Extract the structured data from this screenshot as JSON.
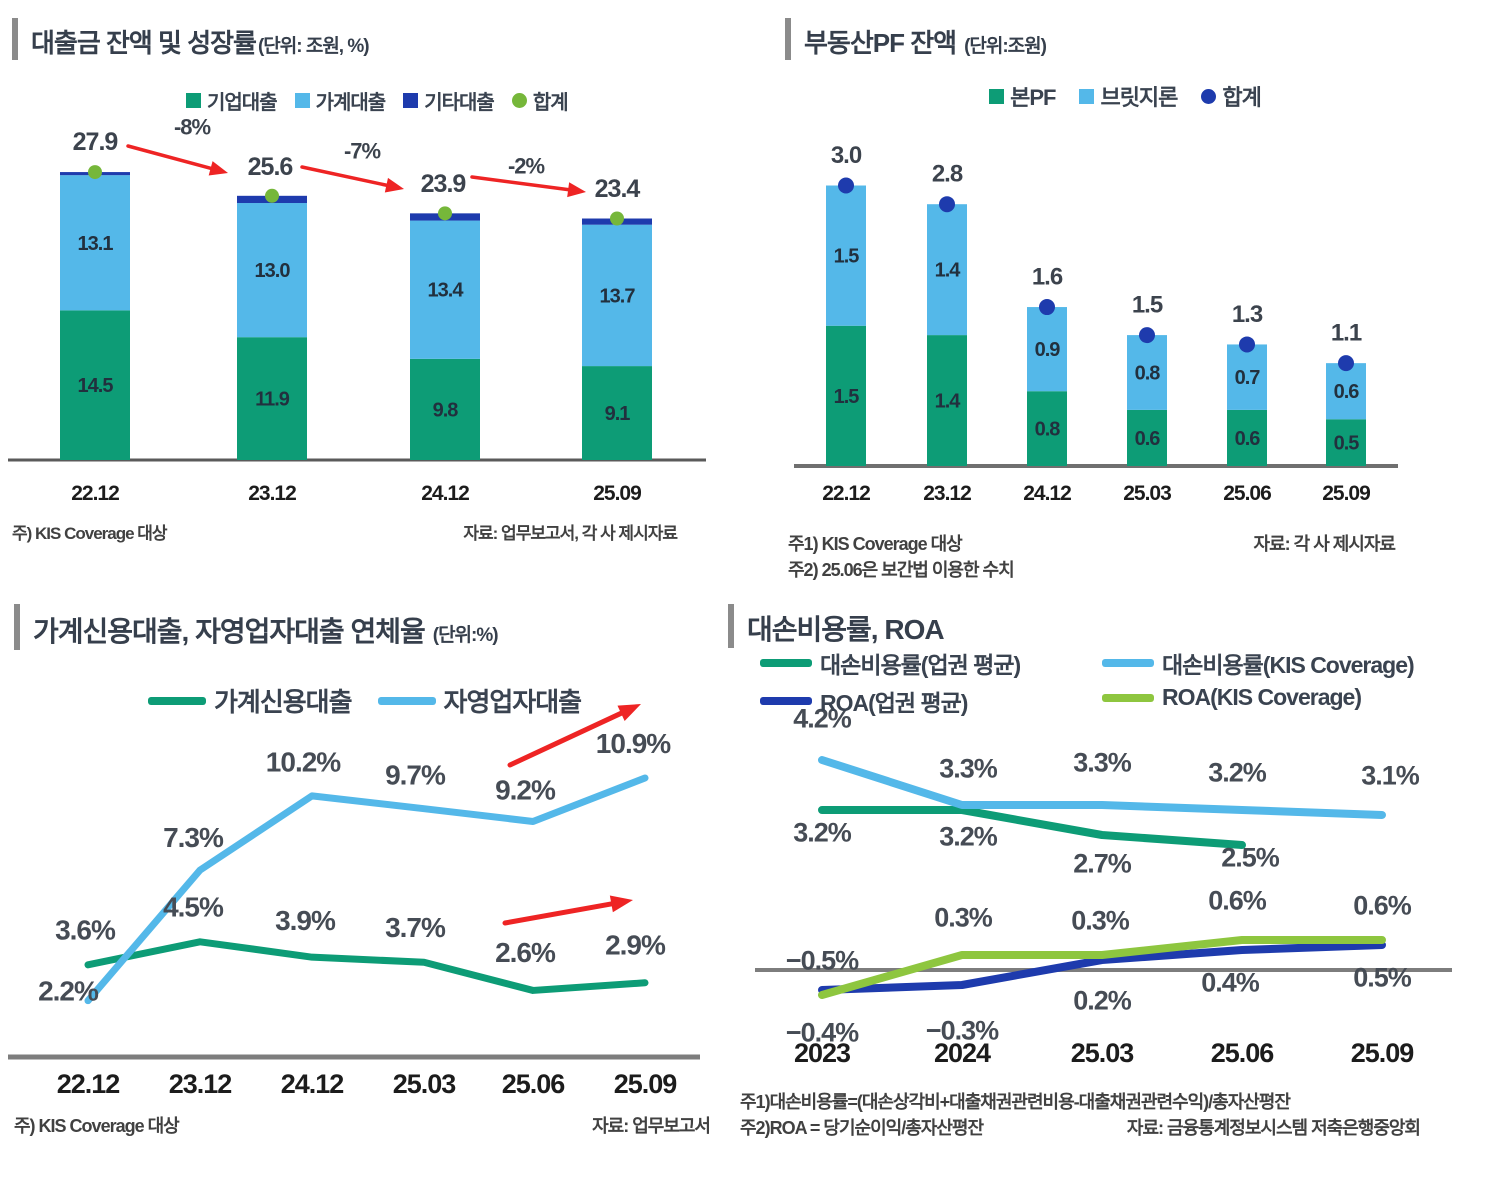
{
  "page": {
    "background": "#ffffff"
  },
  "colors": {
    "green": "#0d9c76",
    "lightblue": "#54b8e9",
    "navy": "#1e3bad",
    "lime_dot": "#76b73a",
    "lime_line": "#8ec63f",
    "red": "#ee2424",
    "axis_dark": "#5a5a5a",
    "axis_gray": "#7d7d7d"
  },
  "panels": {
    "loans": {
      "title": "대출금 잔액 및 성장률",
      "unit": "(단위: 조원, %)",
      "note_left": "주) KIS Coverage 대상",
      "note_right": "자료: 업무보고서, 각 사 제시자료"
    },
    "pf": {
      "title": "부동산PF 잔액",
      "unit": "(단위:조원)",
      "note_left1": "주1) KIS Coverage 대상",
      "note_left2": "주2) 25.06은 보간법 이용한 수치",
      "note_right": "자료: 각 사 제시자료"
    },
    "delinquency": {
      "title": "가계신용대출, 자영업자대출 연체율",
      "unit": "(단위:%)",
      "note_left": "주) KIS Coverage 대상",
      "note_right": "자료: 업무보고서"
    },
    "cost_roa": {
      "title": "대손비용률, ROA",
      "note1": "주1)대손비용률=(대손상각비+대출채권관련비용-대출채권관련수익)/총자산평잔",
      "note2": "주2)ROA = 당기순이익/총자산평잔",
      "note_right": "자료: 금융통계정보시스템 저축은행중앙회"
    }
  },
  "chart_data": [
    {
      "id": "loans",
      "type": "bar",
      "stacked": true,
      "title": "대출금 잔액 및 성장률",
      "unit": "조원, %",
      "legend_position": "top",
      "categories": [
        "22.12",
        "23.12",
        "24.12",
        "25.09"
      ],
      "series": [
        {
          "name": "기업대출",
          "color": "#0d9c76",
          "marker": "square",
          "values": [
            14.5,
            11.9,
            9.8,
            9.1
          ],
          "labels": [
            "14.5",
            "11.9",
            "9.8",
            "9.1"
          ]
        },
        {
          "name": "가계대출",
          "color": "#54b8e9",
          "marker": "square",
          "values": [
            13.1,
            13.0,
            13.4,
            13.7
          ],
          "labels": [
            "13.1",
            "13.0",
            "13.4",
            "13.7"
          ]
        },
        {
          "name": "기타대출",
          "color": "#1e3bad",
          "marker": "square",
          "values": [
            0.3,
            0.7,
            0.7,
            0.6
          ],
          "labels": null
        }
      ],
      "totals": {
        "name": "합계",
        "color": "#76b73a",
        "marker": "circle",
        "values": [
          27.9,
          25.6,
          23.9,
          23.4
        ],
        "labels": [
          "27.9",
          "25.6",
          "23.9",
          "23.4"
        ]
      },
      "growth_labels": [
        "-8%",
        "-7%",
        "-2%"
      ],
      "ylim": [
        0,
        29
      ]
    },
    {
      "id": "pf",
      "type": "bar",
      "stacked": true,
      "title": "부동산PF 잔액",
      "unit": "조원",
      "legend_position": "top",
      "categories": [
        "22.12",
        "23.12",
        "24.12",
        "25.03",
        "25.06",
        "25.09"
      ],
      "series": [
        {
          "name": "본PF",
          "color": "#0d9c76",
          "marker": "square",
          "values": [
            1.5,
            1.4,
            0.8,
            0.6,
            0.6,
            0.5
          ],
          "labels": [
            "1.5",
            "1.4",
            "0.8",
            "0.6",
            "0.6",
            "0.5"
          ]
        },
        {
          "name": "브릿지론",
          "color": "#54b8e9",
          "marker": "square",
          "values": [
            1.5,
            1.4,
            0.9,
            0.8,
            0.7,
            0.6
          ],
          "labels": [
            "1.5",
            "1.4",
            "0.9",
            "0.8",
            "0.7",
            "0.6"
          ]
        }
      ],
      "totals": {
        "name": "합계",
        "color": "#1e3bad",
        "marker": "circle",
        "values": [
          3.0,
          2.8,
          1.6,
          1.5,
          1.3,
          1.1
        ],
        "labels": [
          "3.0",
          "2.8",
          "1.6",
          "1.5",
          "1.3",
          "1.1"
        ]
      },
      "ylim": [
        0,
        3.2
      ]
    },
    {
      "id": "delinquency",
      "type": "line",
      "title": "가계신용대출, 자영업자대출 연체율",
      "unit": "%",
      "legend_position": "top",
      "categories": [
        "22.12",
        "23.12",
        "24.12",
        "25.03",
        "25.06",
        "25.09"
      ],
      "series": [
        {
          "name": "가계신용대출",
          "color": "#0d9c76",
          "marker": "line",
          "values": [
            3.6,
            4.5,
            3.9,
            3.7,
            2.6,
            2.9
          ],
          "labels": [
            "3.6%",
            "4.5%",
            "3.9%",
            "3.7%",
            "2.6%",
            "2.9%"
          ]
        },
        {
          "name": "자영업자대출",
          "color": "#54b8e9",
          "marker": "line",
          "values": [
            2.2,
            7.3,
            10.2,
            9.7,
            9.2,
            10.9
          ],
          "labels": [
            "2.2%",
            "7.3%",
            "10.2%",
            "9.7%",
            "9.2%",
            "10.9%"
          ]
        }
      ],
      "ylim": [
        0,
        12
      ],
      "grid": false
    },
    {
      "id": "cost_roa",
      "type": "line",
      "title": "대손비용률, ROA",
      "unit": "%",
      "legend_position": "top",
      "categories": [
        "2023",
        "2024",
        "25.03",
        "25.06",
        "25.09"
      ],
      "series": [
        {
          "name": "대손비용률(업권 평균)",
          "color": "#0d9c76",
          "marker": "line",
          "values": [
            3.2,
            3.2,
            2.7,
            2.5,
            null
          ],
          "labels": [
            "3.2%",
            "3.2%",
            "2.7%",
            "2.5%",
            null
          ]
        },
        {
          "name": "대손비용률(KIS Coverage)",
          "color": "#54b8e9",
          "marker": "line",
          "values": [
            4.2,
            3.3,
            3.3,
            3.2,
            3.1
          ],
          "labels": [
            "4.2%",
            "3.3%",
            "3.3%",
            "3.2%",
            "3.1%"
          ]
        },
        {
          "name": "ROA(업권 평균)",
          "color": "#1e3bad",
          "marker": "line",
          "values": [
            -0.4,
            -0.3,
            0.2,
            0.4,
            0.5
          ],
          "labels": [
            "−0.4%",
            "−0.3%",
            "0.2%",
            "0.4%",
            "0.5%"
          ]
        },
        {
          "name": "ROA(KIS Coverage)",
          "color": "#8ec63f",
          "marker": "line",
          "values": [
            -0.5,
            0.3,
            0.3,
            0.6,
            0.6
          ],
          "labels": [
            "−0.5%",
            "0.3%",
            "0.3%",
            "0.6%",
            "0.6%"
          ]
        }
      ],
      "ylim": [
        -1,
        4.6
      ],
      "zero_line": true
    }
  ]
}
